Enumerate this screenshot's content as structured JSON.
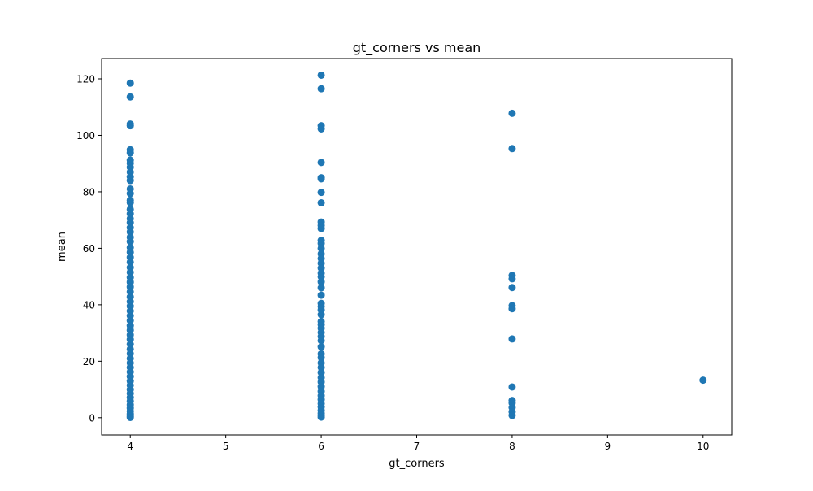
{
  "chart_data": {
    "type": "scatter",
    "title": "gt_corners vs mean",
    "xlabel": "gt_corners",
    "ylabel": "mean",
    "xlim": [
      3.7,
      10.3
    ],
    "ylim": [
      -6.1,
      127.2
    ],
    "xticks": [
      4,
      5,
      6,
      7,
      8,
      9,
      10
    ],
    "yticks": [
      0,
      20,
      40,
      60,
      80,
      100,
      120
    ],
    "grid": false,
    "marker_color": "#1f77b4",
    "series": [
      {
        "name": "gt_corners vs mean",
        "points": [
          {
            "x": 4,
            "y": 118.5
          },
          {
            "x": 4,
            "y": 113.6
          },
          {
            "x": 4,
            "y": 104.0
          },
          {
            "x": 4,
            "y": 103.4
          },
          {
            "x": 4,
            "y": 94.9
          },
          {
            "x": 4,
            "y": 93.8
          },
          {
            "x": 4,
            "y": 91.2
          },
          {
            "x": 4,
            "y": 90.1
          },
          {
            "x": 4,
            "y": 88.7
          },
          {
            "x": 4,
            "y": 87.0
          },
          {
            "x": 4,
            "y": 85.3
          },
          {
            "x": 4,
            "y": 84.0
          },
          {
            "x": 4,
            "y": 81.0
          },
          {
            "x": 4,
            "y": 79.4
          },
          {
            "x": 4,
            "y": 77.0
          },
          {
            "x": 4,
            "y": 76.2
          },
          {
            "x": 4,
            "y": 73.8
          },
          {
            "x": 4,
            "y": 72.2
          },
          {
            "x": 4,
            "y": 70.5
          },
          {
            "x": 4,
            "y": 69.1
          },
          {
            "x": 4,
            "y": 67.3
          },
          {
            "x": 4,
            "y": 65.8
          },
          {
            "x": 4,
            "y": 63.9
          },
          {
            "x": 4,
            "y": 62.4
          },
          {
            "x": 4,
            "y": 60.3
          },
          {
            "x": 4,
            "y": 58.6
          },
          {
            "x": 4,
            "y": 56.8
          },
          {
            "x": 4,
            "y": 55.1
          },
          {
            "x": 4,
            "y": 53.2
          },
          {
            "x": 4,
            "y": 51.5
          },
          {
            "x": 4,
            "y": 49.7
          },
          {
            "x": 4,
            "y": 48.0
          },
          {
            "x": 4,
            "y": 46.3
          },
          {
            "x": 4,
            "y": 44.6
          },
          {
            "x": 4,
            "y": 42.8
          },
          {
            "x": 4,
            "y": 41.1
          },
          {
            "x": 4,
            "y": 39.5
          },
          {
            "x": 4,
            "y": 37.8
          },
          {
            "x": 4,
            "y": 36.1
          },
          {
            "x": 4,
            "y": 34.4
          },
          {
            "x": 4,
            "y": 32.6
          },
          {
            "x": 4,
            "y": 31.0
          },
          {
            "x": 4,
            "y": 29.3
          },
          {
            "x": 4,
            "y": 27.7
          },
          {
            "x": 4,
            "y": 26.0
          },
          {
            "x": 4,
            "y": 24.3
          },
          {
            "x": 4,
            "y": 22.7
          },
          {
            "x": 4,
            "y": 21.0
          },
          {
            "x": 4,
            "y": 19.4
          },
          {
            "x": 4,
            "y": 17.8
          },
          {
            "x": 4,
            "y": 16.2
          },
          {
            "x": 4,
            "y": 14.6
          },
          {
            "x": 4,
            "y": 13.0
          },
          {
            "x": 4,
            "y": 11.5
          },
          {
            "x": 4,
            "y": 10.0
          },
          {
            "x": 4,
            "y": 8.6
          },
          {
            "x": 4,
            "y": 7.2
          },
          {
            "x": 4,
            "y": 5.9
          },
          {
            "x": 4,
            "y": 4.6
          },
          {
            "x": 4,
            "y": 3.4
          },
          {
            "x": 4,
            "y": 2.3
          },
          {
            "x": 4,
            "y": 1.3
          },
          {
            "x": 4,
            "y": 0.5
          },
          {
            "x": 4,
            "y": 0.1
          },
          {
            "x": 6,
            "y": 121.3
          },
          {
            "x": 6,
            "y": 116.5
          },
          {
            "x": 6,
            "y": 103.4
          },
          {
            "x": 6,
            "y": 102.3
          },
          {
            "x": 6,
            "y": 90.4
          },
          {
            "x": 6,
            "y": 85.0
          },
          {
            "x": 6,
            "y": 84.6
          },
          {
            "x": 6,
            "y": 79.8
          },
          {
            "x": 6,
            "y": 76.1
          },
          {
            "x": 6,
            "y": 69.3
          },
          {
            "x": 6,
            "y": 68.1
          },
          {
            "x": 6,
            "y": 67.0
          },
          {
            "x": 6,
            "y": 62.8
          },
          {
            "x": 6,
            "y": 61.7
          },
          {
            "x": 6,
            "y": 60.0
          },
          {
            "x": 6,
            "y": 58.0
          },
          {
            "x": 6,
            "y": 56.4
          },
          {
            "x": 6,
            "y": 54.7
          },
          {
            "x": 6,
            "y": 53.0
          },
          {
            "x": 6,
            "y": 51.2
          },
          {
            "x": 6,
            "y": 49.9
          },
          {
            "x": 6,
            "y": 48.1
          },
          {
            "x": 6,
            "y": 46.0
          },
          {
            "x": 6,
            "y": 43.4
          },
          {
            "x": 6,
            "y": 40.5
          },
          {
            "x": 6,
            "y": 39.4
          },
          {
            "x": 6,
            "y": 38.2
          },
          {
            "x": 6,
            "y": 36.5
          },
          {
            "x": 6,
            "y": 34.1
          },
          {
            "x": 6,
            "y": 33.0
          },
          {
            "x": 6,
            "y": 31.7
          },
          {
            "x": 6,
            "y": 30.2
          },
          {
            "x": 6,
            "y": 28.8
          },
          {
            "x": 6,
            "y": 27.3
          },
          {
            "x": 6,
            "y": 25.1
          },
          {
            "x": 6,
            "y": 22.6
          },
          {
            "x": 6,
            "y": 21.3
          },
          {
            "x": 6,
            "y": 19.4
          },
          {
            "x": 6,
            "y": 17.8
          },
          {
            "x": 6,
            "y": 16.0
          },
          {
            "x": 6,
            "y": 14.2
          },
          {
            "x": 6,
            "y": 12.6
          },
          {
            "x": 6,
            "y": 11.0
          },
          {
            "x": 6,
            "y": 9.3
          },
          {
            "x": 6,
            "y": 7.8
          },
          {
            "x": 6,
            "y": 6.4
          },
          {
            "x": 6,
            "y": 5.0
          },
          {
            "x": 6,
            "y": 3.8
          },
          {
            "x": 6,
            "y": 2.6
          },
          {
            "x": 6,
            "y": 1.6
          },
          {
            "x": 6,
            "y": 0.8
          },
          {
            "x": 6,
            "y": 0.2
          },
          {
            "x": 8,
            "y": 107.8
          },
          {
            "x": 8,
            "y": 95.3
          },
          {
            "x": 8,
            "y": 50.4
          },
          {
            "x": 8,
            "y": 49.2
          },
          {
            "x": 8,
            "y": 46.1
          },
          {
            "x": 8,
            "y": 39.7
          },
          {
            "x": 8,
            "y": 38.6
          },
          {
            "x": 8,
            "y": 27.9
          },
          {
            "x": 8,
            "y": 10.9
          },
          {
            "x": 8,
            "y": 6.1
          },
          {
            "x": 8,
            "y": 5.2
          },
          {
            "x": 8,
            "y": 3.6
          },
          {
            "x": 8,
            "y": 2.1
          },
          {
            "x": 8,
            "y": 0.8
          },
          {
            "x": 10,
            "y": 13.3
          }
        ]
      }
    ]
  }
}
